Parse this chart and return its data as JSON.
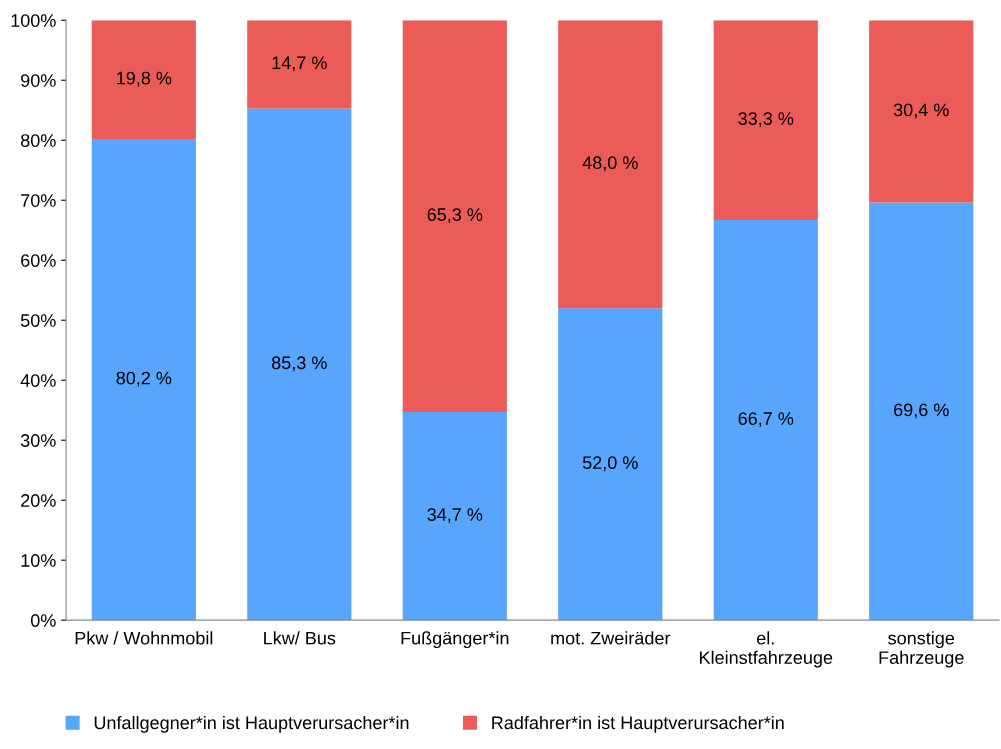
{
  "chart_data": {
    "type": "bar",
    "stacked": true,
    "categories": [
      "Pkw / Wohnmobil",
      "Lkw/ Bus",
      "Fußgänger*in",
      "mot. Zweiräder",
      "el.\nKleinstfahrzeuge",
      "sonstige\nFahrzeuge"
    ],
    "series": [
      {
        "name": "Unfallgegner*in ist Hauptverursacher*in",
        "color": "#58a5fd",
        "values": [
          80.2,
          85.3,
          34.7,
          52.0,
          66.7,
          69.6
        ],
        "value_labels": [
          "80,2 %",
          "85,3 %",
          "34,7 %",
          "52,0 %",
          "66,7 %",
          "69,6 %"
        ]
      },
      {
        "name": "Radfahrer*in ist Hauptverursacher*in",
        "color": "#eb5c59",
        "values": [
          19.8,
          14.7,
          65.3,
          48.0,
          33.3,
          30.4
        ],
        "value_labels": [
          "19,8 %",
          "14,7 %",
          "65,3 %",
          "48,0 %",
          "33,3 %",
          "30,4 %"
        ]
      }
    ],
    "ylim": [
      0,
      100
    ],
    "yticks": [
      {
        "value": 0,
        "label": "0%"
      },
      {
        "value": 10,
        "label": "10%"
      },
      {
        "value": 20,
        "label": "20%"
      },
      {
        "value": 30,
        "label": "30%"
      },
      {
        "value": 40,
        "label": "40%"
      },
      {
        "value": 50,
        "label": "50%"
      },
      {
        "value": 60,
        "label": "60%"
      },
      {
        "value": 70,
        "label": "70%"
      },
      {
        "value": 80,
        "label": "80%"
      },
      {
        "value": 90,
        "label": "90%"
      },
      {
        "value": 100,
        "label": "100%"
      }
    ],
    "grid": false,
    "legend": "bottom"
  }
}
